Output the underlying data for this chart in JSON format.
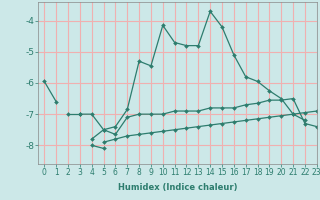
{
  "xlabel": "Humidex (Indice chaleur)",
  "bg_color": "#cce8e8",
  "grid_color": "#f0b0b0",
  "line_color": "#2d7d6e",
  "spine_color": "#888888",
  "xlim": [
    -0.5,
    23
  ],
  "ylim": [
    -8.6,
    -3.4
  ],
  "yticks": [
    -8,
    -7,
    -6,
    -5,
    -4
  ],
  "xticks": [
    0,
    1,
    2,
    3,
    4,
    5,
    6,
    7,
    8,
    9,
    10,
    11,
    12,
    13,
    14,
    15,
    16,
    17,
    18,
    19,
    20,
    21,
    22,
    23
  ],
  "series": [
    [
      0,
      -5.95,
      1,
      -6.6
    ],
    [
      2,
      -7.0,
      3,
      -7.0
    ],
    [
      3,
      -7.0,
      4,
      -7.0,
      5,
      -7.5,
      6,
      -7.4,
      7,
      -6.85,
      8,
      -5.3,
      9,
      -5.45,
      10,
      -4.15,
      11,
      -4.7,
      12,
      -4.8,
      13,
      -4.8,
      14,
      -3.7,
      15,
      -4.2,
      16,
      -5.1,
      17,
      -5.8,
      18,
      -5.95,
      19,
      -6.25,
      20,
      -6.5,
      21,
      -7.0,
      22,
      -7.2
    ],
    [
      4,
      -7.8,
      5,
      -7.5,
      6,
      -7.65,
      7,
      -7.1,
      8,
      -7.0,
      9,
      -7.0,
      10,
      -7.0,
      11,
      -6.9,
      12,
      -6.9,
      13,
      -6.9,
      14,
      -6.8,
      15,
      -6.8,
      16,
      -6.8,
      17,
      -6.7,
      18,
      -6.65,
      19,
      -6.55,
      20,
      -6.55,
      21,
      -6.5,
      22,
      -7.3,
      23,
      -7.4
    ],
    [
      4,
      -8.0,
      5,
      -8.1
    ],
    [
      5,
      -7.9,
      6,
      -7.8,
      7,
      -7.7,
      8,
      -7.65,
      9,
      -7.6,
      10,
      -7.55,
      11,
      -7.5,
      12,
      -7.45,
      13,
      -7.4,
      14,
      -7.35,
      15,
      -7.3,
      16,
      -7.25,
      17,
      -7.2,
      18,
      -7.15,
      19,
      -7.1,
      20,
      -7.05,
      21,
      -7.0,
      22,
      -6.95,
      23,
      -6.9
    ]
  ],
  "xlabel_fontsize": 6.0,
  "tick_fontsize": 5.5,
  "ytick_fontsize": 6.5
}
